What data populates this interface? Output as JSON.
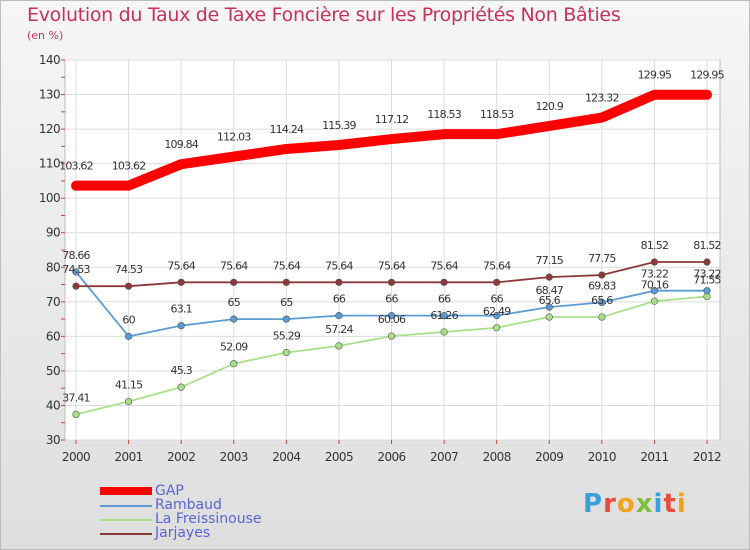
{
  "header": {
    "title": "Evolution du Taux de Taxe Foncière sur les Propriétés Non Bâties",
    "subtitle": "(en %)"
  },
  "logo": {
    "text": "Proxiti",
    "colors": [
      "#3aa0dc",
      "#e84b3c",
      "#f2a31b",
      "#7cbf3b",
      "#3aa0dc",
      "#e84b3c",
      "#f2a31b"
    ]
  },
  "chart_data": {
    "type": "line",
    "x": [
      "2000",
      "2001",
      "2002",
      "2003",
      "2004",
      "2005",
      "2006",
      "2007",
      "2008",
      "2009",
      "2010",
      "2011",
      "2012"
    ],
    "ylim": [
      30,
      140
    ],
    "yticks": [
      30,
      40,
      50,
      60,
      70,
      80,
      90,
      100,
      110,
      120,
      130,
      140
    ],
    "grid": true,
    "legend_position": "bottom-left",
    "series": [
      {
        "name": "GAP",
        "color": "#ff0000",
        "values": [
          103.62,
          103.62,
          109.84,
          112.03,
          114.24,
          115.39,
          117.12,
          118.53,
          118.53,
          120.9,
          123.32,
          129.95,
          129.95
        ],
        "labels": [
          "103.62",
          "103.62",
          "109.84",
          "112.03",
          "114.24",
          "115.39",
          "117.12",
          "118.53",
          "118.53",
          "120.9",
          "123.32",
          "129.95",
          "129.95"
        ]
      },
      {
        "name": "Rambaud",
        "color": "#5b9bd5",
        "values": [
          78.66,
          60,
          63.1,
          65,
          65,
          66,
          66,
          66,
          66,
          68.47,
          69.83,
          73.22,
          73.22
        ],
        "labels": [
          "78.66",
          "60",
          "63.1",
          "65",
          "65",
          "66",
          "66",
          "66",
          "66",
          "68.47",
          "69.83",
          "73.22",
          "73.22"
        ]
      },
      {
        "name": "La Freissinouse",
        "color": "#a8e08a",
        "values": [
          37.41,
          41.15,
          45.3,
          52.09,
          55.29,
          57.24,
          60.06,
          61.26,
          62.49,
          65.6,
          65.6,
          70.16,
          71.55
        ],
        "labels": [
          "37.41",
          "41.15",
          "45.3",
          "52.09",
          "55.29",
          "57.24",
          "60.06",
          "61.26",
          "62.49",
          "65.6",
          "65.6",
          "70.16",
          "71.55"
        ]
      },
      {
        "name": "Jarjayes",
        "color": "#8b3a3a",
        "values": [
          74.53,
          74.53,
          75.64,
          75.64,
          75.64,
          75.64,
          75.64,
          75.64,
          75.64,
          77.15,
          77.75,
          81.52,
          81.52
        ],
        "labels": [
          "74.53",
          "74.53",
          "75.64",
          "75.64",
          "75.64",
          "75.64",
          "75.64",
          "75.64",
          "75.64",
          "77.15",
          "77.75",
          "81.52",
          "81.52"
        ]
      }
    ]
  }
}
